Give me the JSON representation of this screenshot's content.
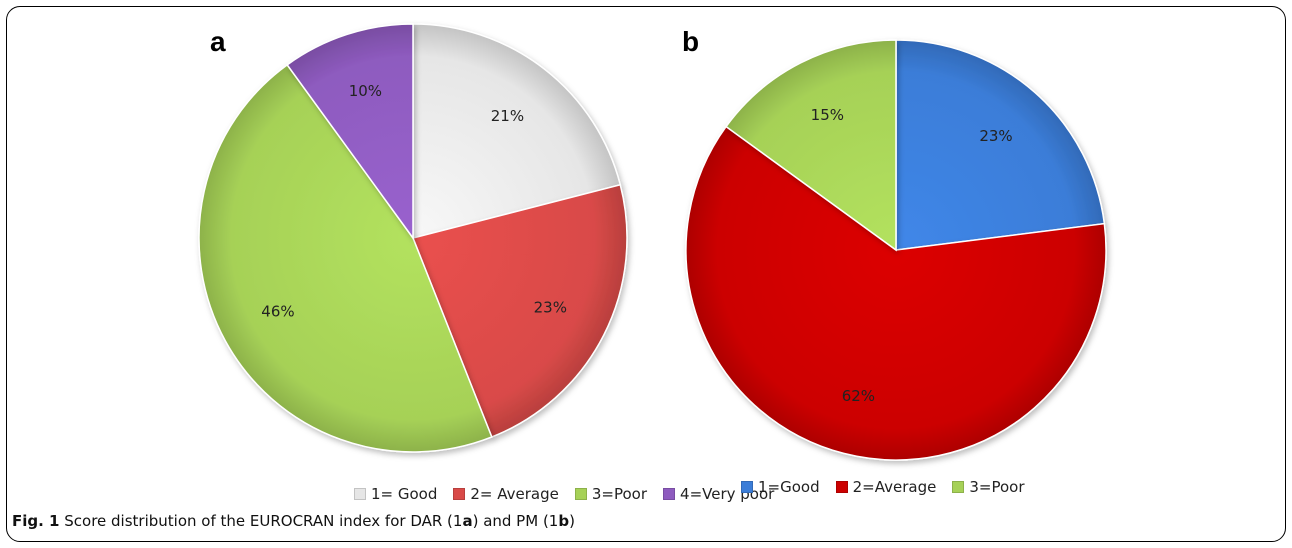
{
  "panels": [
    {
      "letter": "a"
    },
    {
      "letter": "b"
    }
  ],
  "chart_data": [
    {
      "type": "pie",
      "panel": "a",
      "categories": [
        "1= Good",
        "2= Average",
        "3=Poor",
        "4=Very poor"
      ],
      "values": [
        21,
        23,
        46,
        10
      ],
      "labels": [
        "21%",
        "23%",
        "46%",
        "10%"
      ],
      "colors": [
        "#e6e6e6",
        "#d94a48",
        "#a6d157",
        "#8e5bbf"
      ],
      "legend_position": "bottom"
    },
    {
      "type": "pie",
      "panel": "b",
      "categories": [
        "1=Good",
        "2=Average",
        "3=Poor"
      ],
      "values": [
        23,
        62,
        15
      ],
      "labels": [
        "23%",
        "62%",
        "15%"
      ],
      "colors": [
        "#3b7dd8",
        "#cc0000",
        "#a6d157"
      ],
      "legend_position": "bottom"
    }
  ],
  "caption": {
    "prefix": "Fig. 1",
    "text1": " Score distribution of the EUROCRAN index for DAR (1",
    "bold1": "a",
    "text2": ") and PM (1",
    "bold2": "b",
    "text3": ")"
  }
}
